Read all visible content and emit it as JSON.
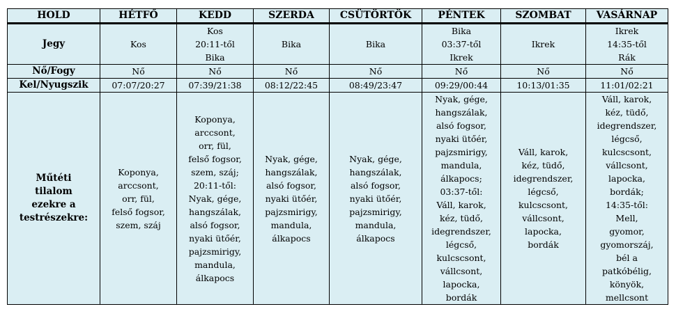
{
  "header": [
    "HOLD",
    "HÉTFŐ",
    "KEDD",
    "SZERDA",
    "CSÜTÖRTÖK",
    "PÉNTEK",
    "SZOMBAT",
    "VASÁRNAP"
  ],
  "rows": [
    {
      "label": "Jegy",
      "cells": [
        "Kos",
        "Kos\n20:11-től\nBika",
        "Bika",
        "Bika",
        "Bika\n03:37-től\nIkrek",
        "Ikrek",
        "Ikrek\n14:35-től\nRák"
      ]
    },
    {
      "label": "Nő/Fogy",
      "cells": [
        "Nő",
        "Nő",
        "Nő",
        "Nő",
        "Nő",
        "Nő",
        "Nő"
      ]
    },
    {
      "label": "Kel/Nyugszik",
      "cells": [
        "07:07/20:27",
        "07:39/21:38",
        "08:12/22:45",
        "08:49/23:47",
        "09:29/00:44",
        "10:13/01:35",
        "11:01/02:21"
      ]
    },
    {
      "label": "Műtéti\ntilalom\nezekre a\ntestrészekre:",
      "cells": [
        "Koponya,\narccsont,\norr, fül,\nfelső fogsor,\nszem, száj",
        "Koponya,\narccsont,\norr, fül,\nfelső fogsor,\nszem, száj;\n20:11-től:\nNyak, gége,\nhangszálak,\nalsó fogsor,\nnyaki ütőér,\npajzsmirigy,\nmandula,\nálkapocs",
        "Nyak, gége,\nhangszálak,\nalsó fogsor,\nnyaki ütőér,\npajzsmirigy,\nmandula,\nálkapocs",
        "Nyak, gége,\nhangszálak,\nalsó fogsor,\nnyaki ütőér,\npajzsmirigy,\nmandula,\nálkapocs",
        "Nyak, gége,\nhangszálak,\nalsó fogsor,\nnyaki ütőér,\npajzsmirigy,\nmandula,\nálkapocs;\n03:37-től:\nVáll, karok,\nkéz, tüdő,\nidegrendszer,\nlégcső,\nkulcscsont,\nvállcsont,\nlapocka,\nbordák",
        "Váll, karok,\nkéz, tüdő,\nidegrendszer,\nlégcső,\nkulcscsont,\nvállcsont,\nlapocka,\nbordák",
        "Váll, karok,\nkéz, tüdő,\nidegrendszer,\nlégcső,\nkulcscsont,\nvállcsont,\nlapocka,\nbordák;\n14:35-től:\nMell,\ngyomor,\ngyomorszáj,\nbél a\npatkóbélig,\nkönyök,\nmellcsont"
      ]
    }
  ]
}
